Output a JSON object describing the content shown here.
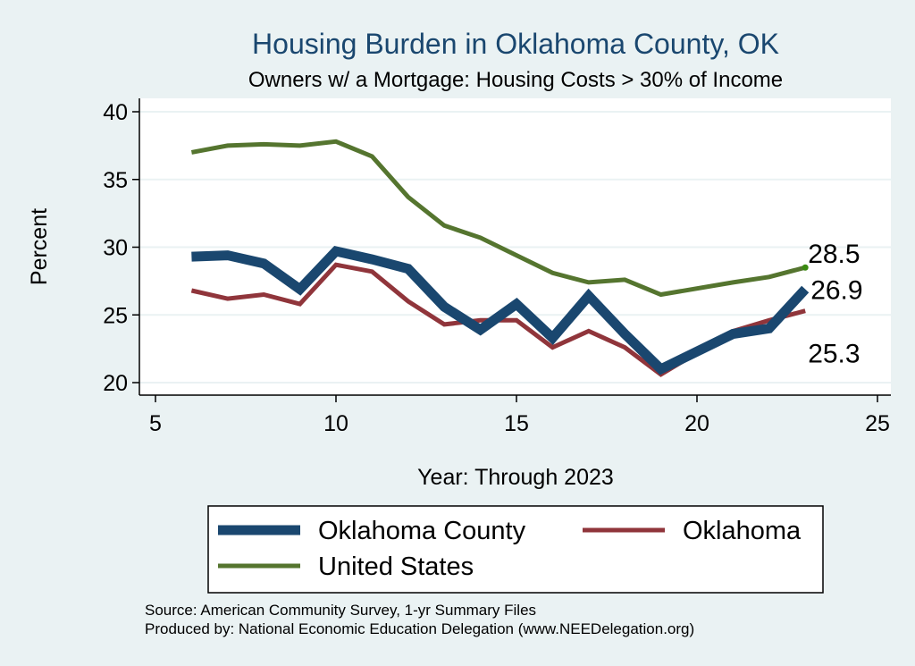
{
  "chart_data": {
    "type": "line",
    "title": "Housing Burden in Oklahoma County, OK",
    "subtitle": "Owners w/ a Mortgage: Housing Costs > 30% of Income",
    "xlabel": "Year: Through 2023",
    "ylabel": "Percent",
    "xlim": [
      5,
      25
    ],
    "ylim": [
      20,
      40
    ],
    "xticks": [
      5,
      10,
      15,
      20,
      25
    ],
    "yticks": [
      20,
      25,
      30,
      35,
      40
    ],
    "grid": true,
    "legend_position": "bottom",
    "series": [
      {
        "name": "Oklahoma County",
        "color": "#1a476f",
        "x": [
          6,
          7,
          8,
          9,
          10,
          11,
          12,
          13,
          14,
          15,
          16,
          17,
          18,
          19,
          21,
          22,
          23
        ],
        "y": [
          29.3,
          29.4,
          28.8,
          26.9,
          29.7,
          29.1,
          28.4,
          25.6,
          23.9,
          25.8,
          23.3,
          26.4,
          23.6,
          21.0,
          23.6,
          24.0,
          26.9
        ],
        "end_label": "26.9"
      },
      {
        "name": "Oklahoma",
        "color": "#90353b",
        "x": [
          6,
          7,
          8,
          9,
          10,
          11,
          12,
          13,
          14,
          15,
          16,
          17,
          18,
          19,
          21,
          22,
          23
        ],
        "y": [
          26.8,
          26.2,
          26.5,
          25.8,
          28.7,
          28.2,
          26.0,
          24.3,
          24.6,
          24.6,
          22.6,
          23.8,
          22.6,
          20.6,
          23.8,
          24.6,
          25.3
        ],
        "end_label": "25.3"
      },
      {
        "name": "United States",
        "color": "#55752f",
        "x": [
          6,
          7,
          8,
          9,
          10,
          11,
          12,
          13,
          14,
          15,
          16,
          17,
          18,
          19,
          21,
          22,
          23
        ],
        "y": [
          37.0,
          37.5,
          37.6,
          37.5,
          37.8,
          36.7,
          33.7,
          31.6,
          30.7,
          29.4,
          28.1,
          27.4,
          27.6,
          26.5,
          27.4,
          27.8,
          28.5
        ],
        "end_label": "28.5"
      }
    ],
    "notes": [
      "Source: American Community Survey, 1-yr Summary Files",
      "Produced by: National Economic Education Delegation (www.NEEDelegation.org)"
    ]
  }
}
